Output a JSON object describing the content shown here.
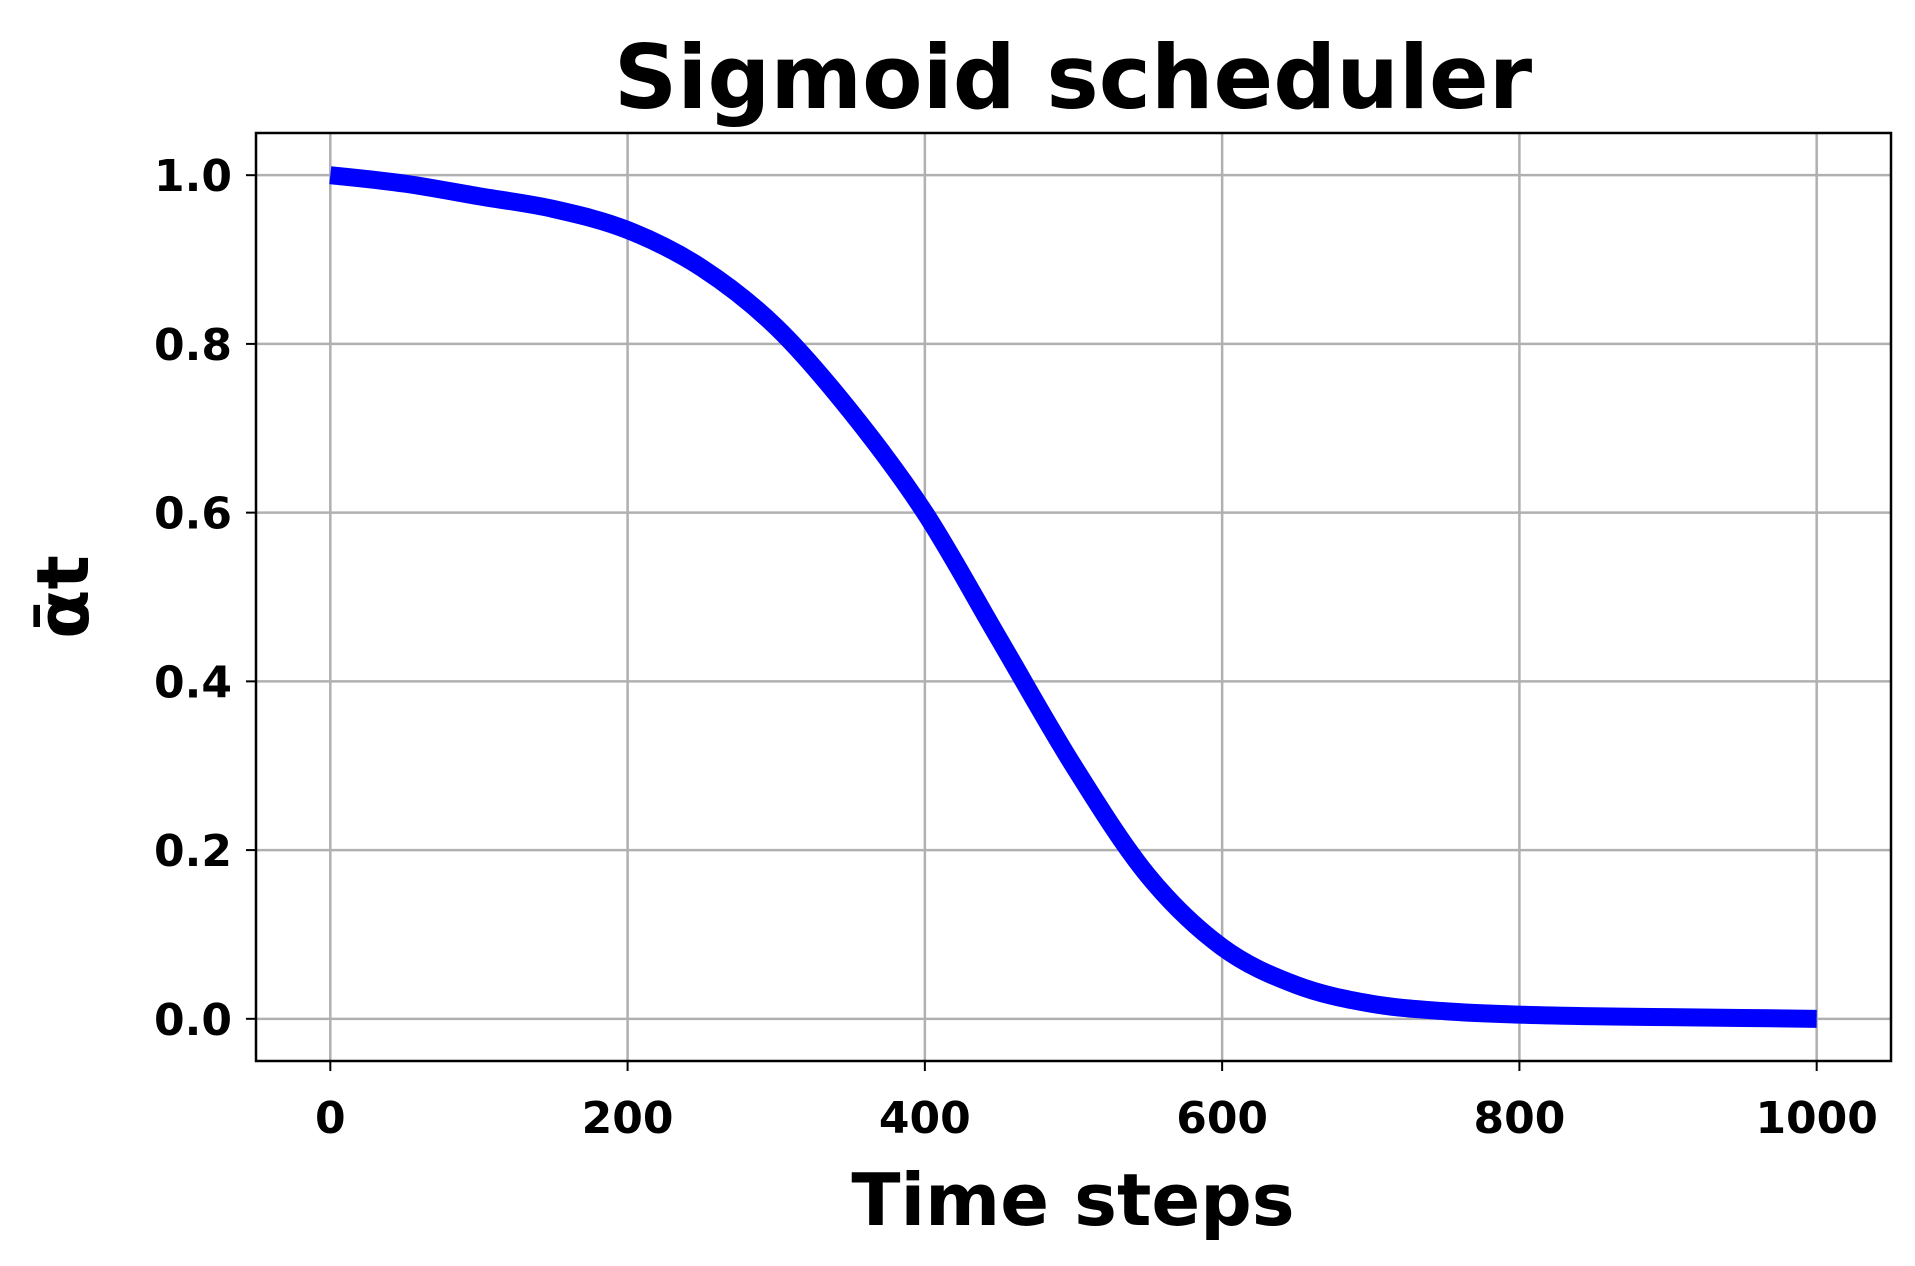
{
  "chart_data": {
    "type": "line",
    "title": "Sigmoid scheduler",
    "xlabel": "Time steps",
    "ylabel": "ᾱt",
    "xlim": [
      -50,
      1050
    ],
    "ylim": [
      -0.05,
      1.05
    ],
    "x_ticks": [
      0,
      200,
      400,
      600,
      800,
      1000
    ],
    "x_tick_labels": [
      "0",
      "200",
      "400",
      "600",
      "800",
      "1000"
    ],
    "y_ticks": [
      0.0,
      0.2,
      0.4,
      0.6,
      0.8,
      1.0
    ],
    "y_tick_labels": [
      "0.0",
      "0.2",
      "0.4",
      "0.6",
      "0.8",
      "1.0"
    ],
    "grid": true,
    "series": [
      {
        "color": "#0000ff",
        "x": [
          0,
          50,
          100,
          150,
          200,
          250,
          300,
          350,
          400,
          450,
          500,
          550,
          600,
          650,
          700,
          750,
          800,
          850,
          900,
          950,
          1000
        ],
        "y": [
          1.0,
          0.99,
          0.975,
          0.96,
          0.935,
          0.89,
          0.82,
          0.72,
          0.6,
          0.45,
          0.3,
          0.17,
          0.085,
          0.04,
          0.018,
          0.009,
          0.005,
          0.003,
          0.002,
          0.001,
          0.0
        ]
      }
    ]
  }
}
